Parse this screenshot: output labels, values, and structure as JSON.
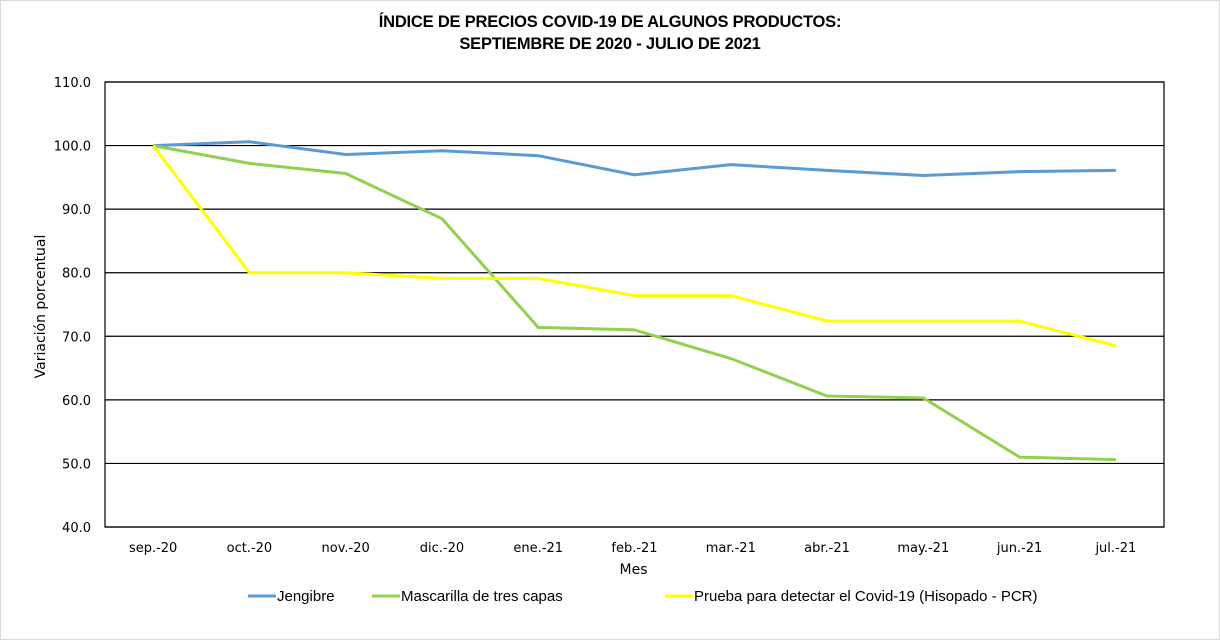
{
  "chart_data": {
    "type": "line",
    "title_line1": "ÍNDICE DE PRECIOS COVID-19 DE ALGUNOS PRODUCTOS:",
    "title_line2": "SEPTIEMBRE DE 2020 - JULIO DE 2021",
    "xlabel": "Mes",
    "ylabel": "Variación porcentual",
    "ylim": [
      40,
      110
    ],
    "yticks": [
      "40.0",
      "50.0",
      "60.0",
      "70.0",
      "80.0",
      "90.0",
      "100.0",
      "110.0"
    ],
    "ytick_values": [
      40,
      50,
      60,
      70,
      80,
      90,
      100,
      110
    ],
    "grid": true,
    "legend_position": "bottom",
    "categories": [
      "sep.-20",
      "oct.-20",
      "nov.-20",
      "dic.-20",
      "ene.-21",
      "feb.-21",
      "mar.-21",
      "abr.-21",
      "may.-21",
      "jun.-21",
      "jul.-21"
    ],
    "series": [
      {
        "name": "Jengibre",
        "color": "#5b9bd5",
        "values": [
          100.0,
          100.6,
          98.6,
          99.2,
          98.4,
          95.4,
          97.0,
          96.1,
          95.3,
          95.9,
          96.1
        ]
      },
      {
        "name": "Mascarilla de tres capas",
        "color": "#92d050",
        "values": [
          100.0,
          97.2,
          95.6,
          88.5,
          71.4,
          71.0,
          66.5,
          60.6,
          60.3,
          51.0,
          50.6
        ]
      },
      {
        "name": "Prueba para detectar el Covid-19 (Hisopado - PCR)",
        "color": "#ffff00",
        "values": [
          100.0,
          80.0,
          80.0,
          79.1,
          79.1,
          76.4,
          76.4,
          72.4,
          72.4,
          72.4,
          68.5
        ]
      }
    ]
  }
}
